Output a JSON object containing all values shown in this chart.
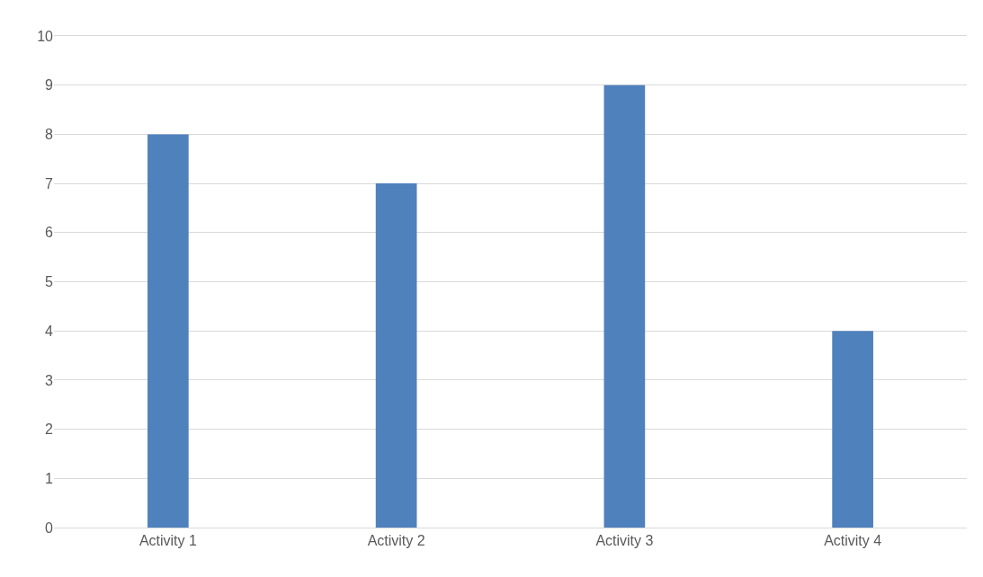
{
  "chart_data": {
    "type": "bar",
    "categories": [
      "Activity 1",
      "Activity 2",
      "Activity 3",
      "Activity 4"
    ],
    "values": [
      8,
      7,
      9,
      4
    ],
    "color": "#4f81bd",
    "ylim": [
      0,
      10
    ],
    "yticks": [
      0,
      1,
      2,
      3,
      4,
      5,
      6,
      7,
      8,
      9,
      10
    ],
    "grid": "y"
  }
}
